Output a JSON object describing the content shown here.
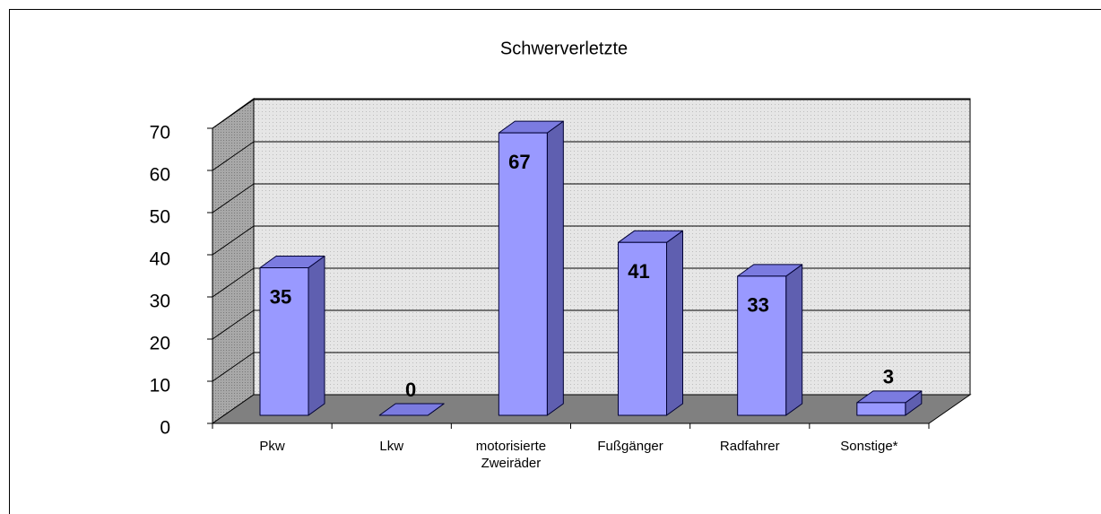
{
  "chart_data": {
    "type": "bar3d",
    "title": "Schwerverletzte",
    "categories": [
      "Pkw",
      "Lkw",
      "motorisierte Zweiräder",
      "Fußgänger",
      "Radfahrer",
      "Sonstige*"
    ],
    "values": [
      35,
      0,
      67,
      41,
      33,
      3
    ],
    "color": "#9999ff",
    "ylim": [
      0,
      70
    ],
    "yticks": [
      0,
      10,
      20,
      30,
      40,
      50,
      60,
      70
    ],
    "grid": true
  }
}
